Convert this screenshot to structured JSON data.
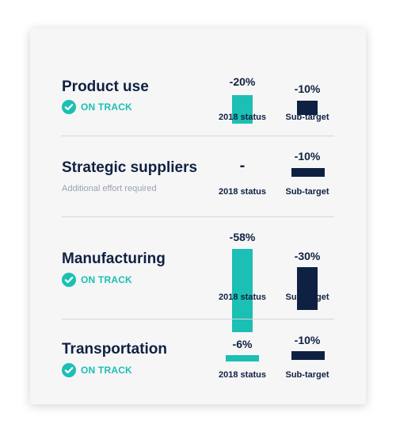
{
  "chart_data": {
    "type": "bar",
    "series": [
      {
        "name": "2018 status",
        "values": [
          -20,
          null,
          -58,
          -6
        ]
      },
      {
        "name": "Sub-target",
        "values": [
          -10,
          -10,
          -30,
          -10
        ]
      }
    ],
    "categories": [
      "Product use",
      "Strategic suppliers",
      "Manufacturing",
      "Transportation"
    ],
    "colors": {
      "status": "#1cbfb3",
      "target": "#0f2142"
    }
  },
  "rows": [
    {
      "title": "Product use",
      "status_text": "ON TRACK",
      "status_value": "-20%",
      "target_value": "-10%",
      "status_label": "2018 status",
      "target_label": "Sub-target"
    },
    {
      "title": "Strategic suppliers",
      "note": "Additional effort required",
      "status_value": "-",
      "target_value": "-10%",
      "status_label": "2018 status",
      "target_label": "Sub-target"
    },
    {
      "title": "Manufacturing",
      "status_text": "ON TRACK",
      "status_value": "-58%",
      "target_value": "-30%",
      "status_label": "2018 status",
      "target_label": "Sub-target"
    },
    {
      "title": "Transportation",
      "status_text": "ON TRACK",
      "status_value": "-6%",
      "target_value": "-10%",
      "status_label": "2018 status",
      "target_label": "Sub-target"
    }
  ]
}
